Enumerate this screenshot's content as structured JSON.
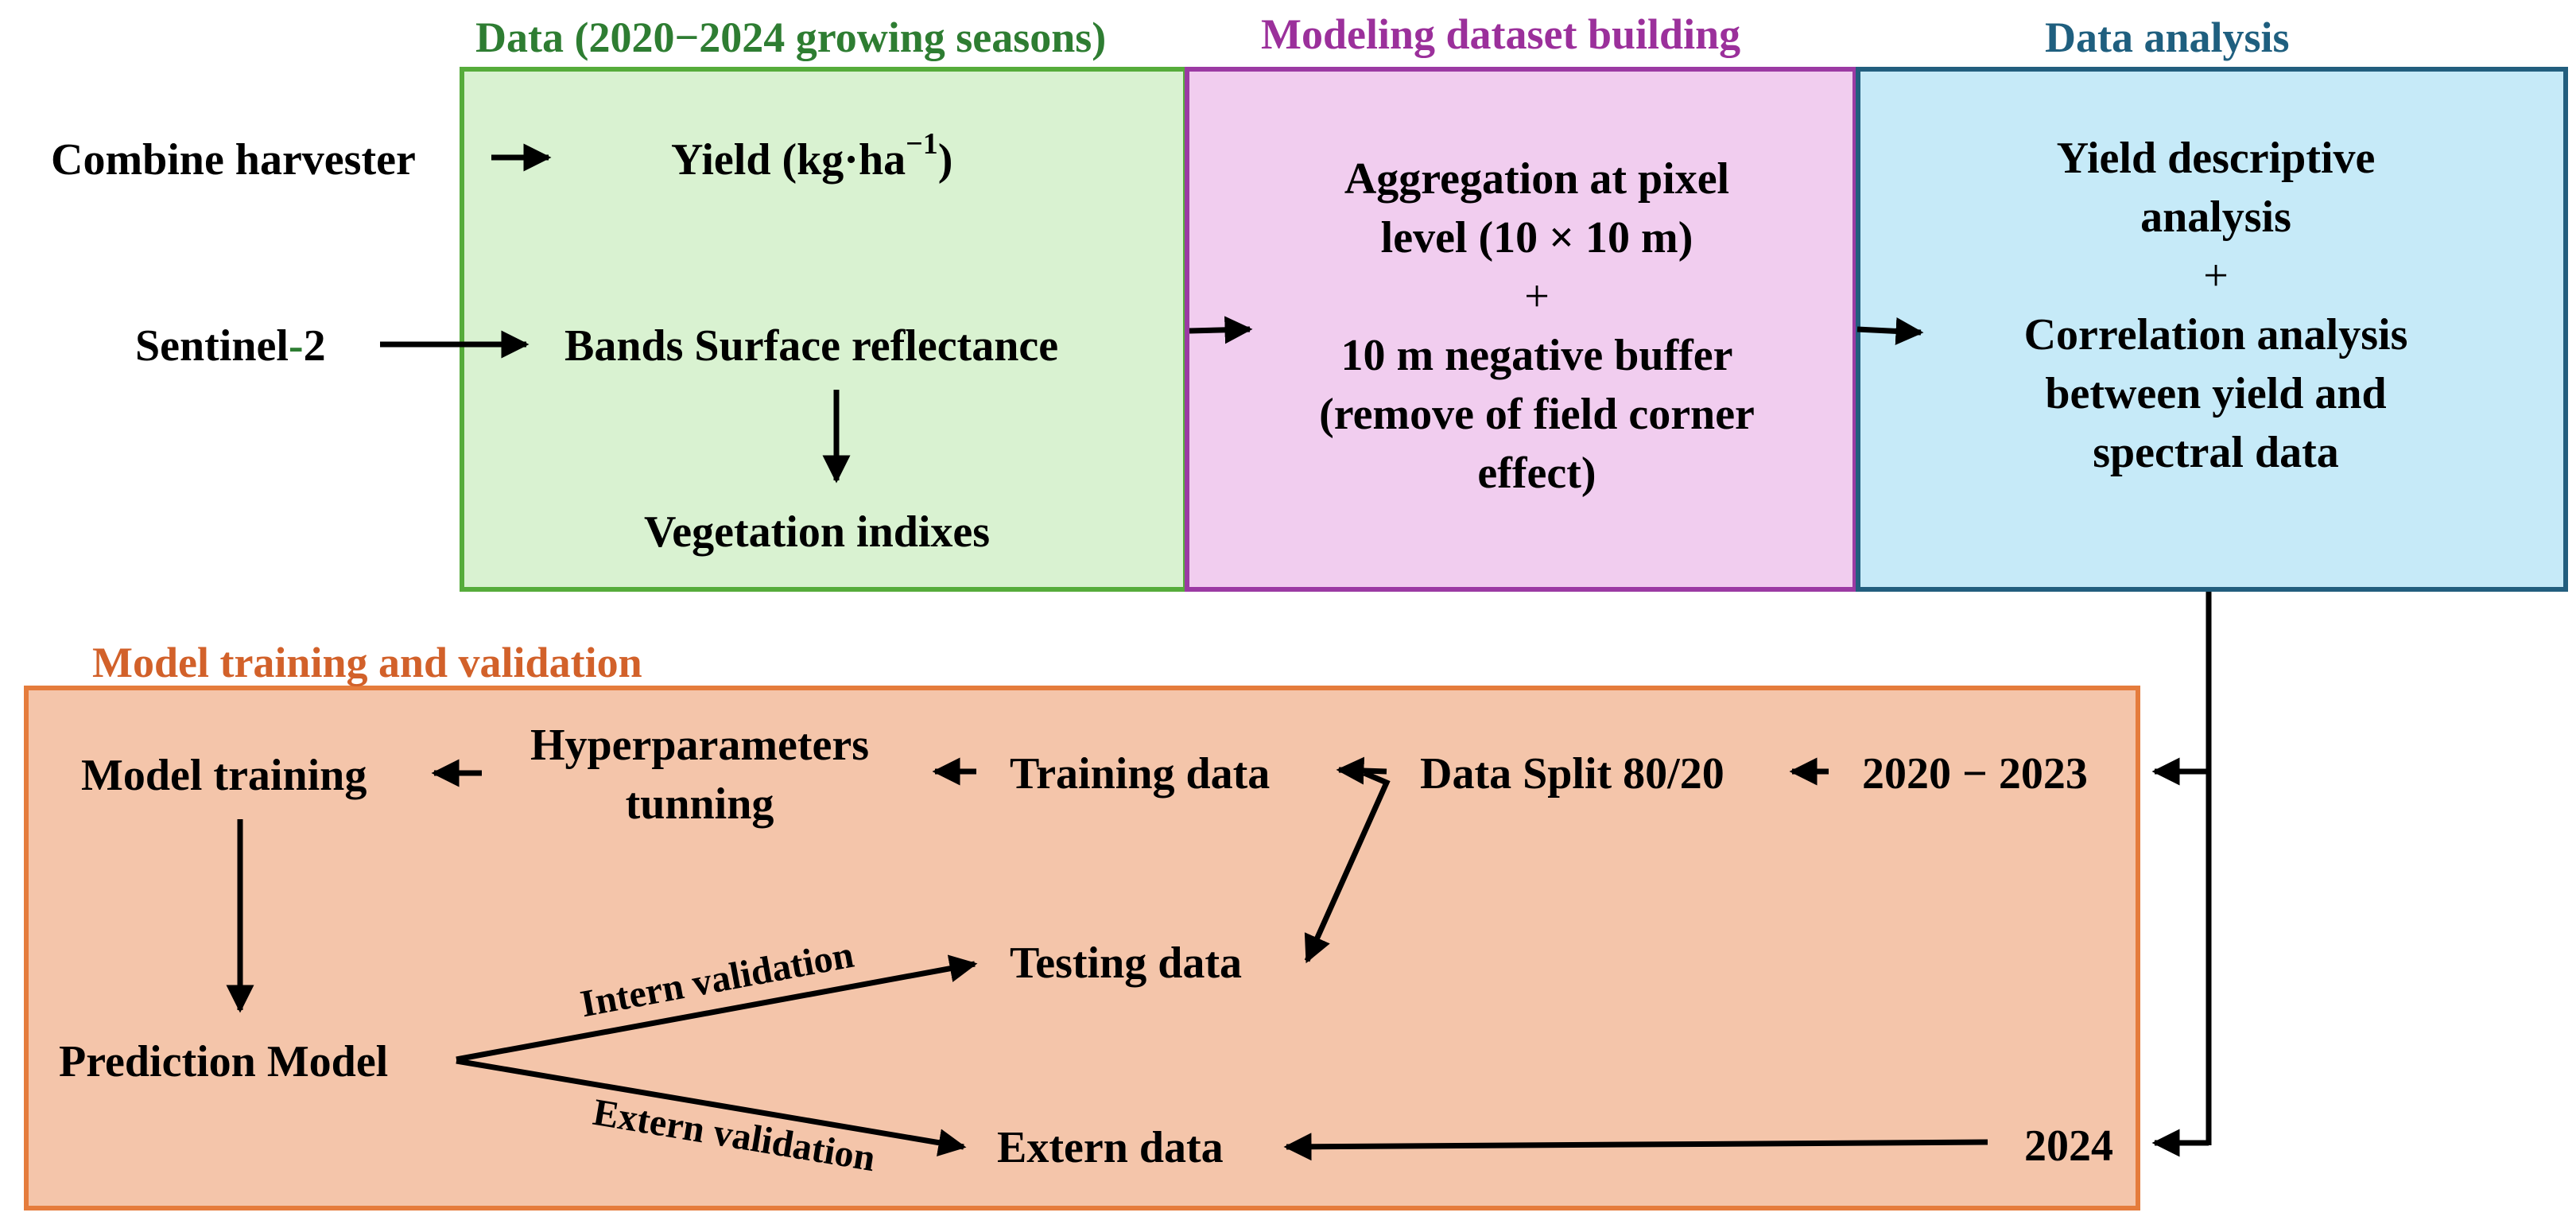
{
  "sections": {
    "data": {
      "title": "Data (2020−2024 growing seasons)",
      "color": "#2e7d32",
      "border": "#56ac3b",
      "fill": "#d9f2d1"
    },
    "modeling": {
      "title": "Modeling dataset building",
      "color": "#9b309b",
      "border": "#9b3aa3",
      "fill": "#f1cdef"
    },
    "analysis": {
      "title": "Data analysis",
      "color": "#1f5f7f",
      "border": "#225e7e",
      "fill": "#c6eaf8"
    },
    "training": {
      "title": "Model training and validation",
      "color": "#d2612a",
      "border": "#e57c3c",
      "fill": "#f4c5aa"
    }
  },
  "nodes": {
    "combine_harvester": "Combine harvester",
    "yield_label": "Yield (kg·ha",
    "yield_exp": "−1",
    "yield_close": ")",
    "sentinel_prefix": "Sentinel",
    "sentinel_dash": "-",
    "sentinel_suffix": "2",
    "bands": "Bands Surface reflectance",
    "vegetation": "Vegetation indixes",
    "aggregation": [
      "Aggregation at pixel",
      "level (10 × 10 m)",
      "+",
      "10 m negative buffer",
      "(remove of field corner",
      "effect)"
    ],
    "analysis": [
      "Yield descriptive",
      "analysis",
      "+",
      "Correlation analysis",
      "between yield and",
      "spectral data"
    ],
    "model_training": "Model training",
    "hyperparameters": [
      "Hyperparameters",
      "tunning"
    ],
    "training_data": "Training data",
    "data_split": "Data Split 80/20",
    "years_train": "2020 − 2023",
    "testing_data": "Testing data",
    "prediction_model": "Prediction Model",
    "extern_data": "Extern data",
    "year_extern": "2024"
  },
  "edge_labels": {
    "intern_validation": "Intern validation",
    "extern_validation": "Extern validation"
  }
}
